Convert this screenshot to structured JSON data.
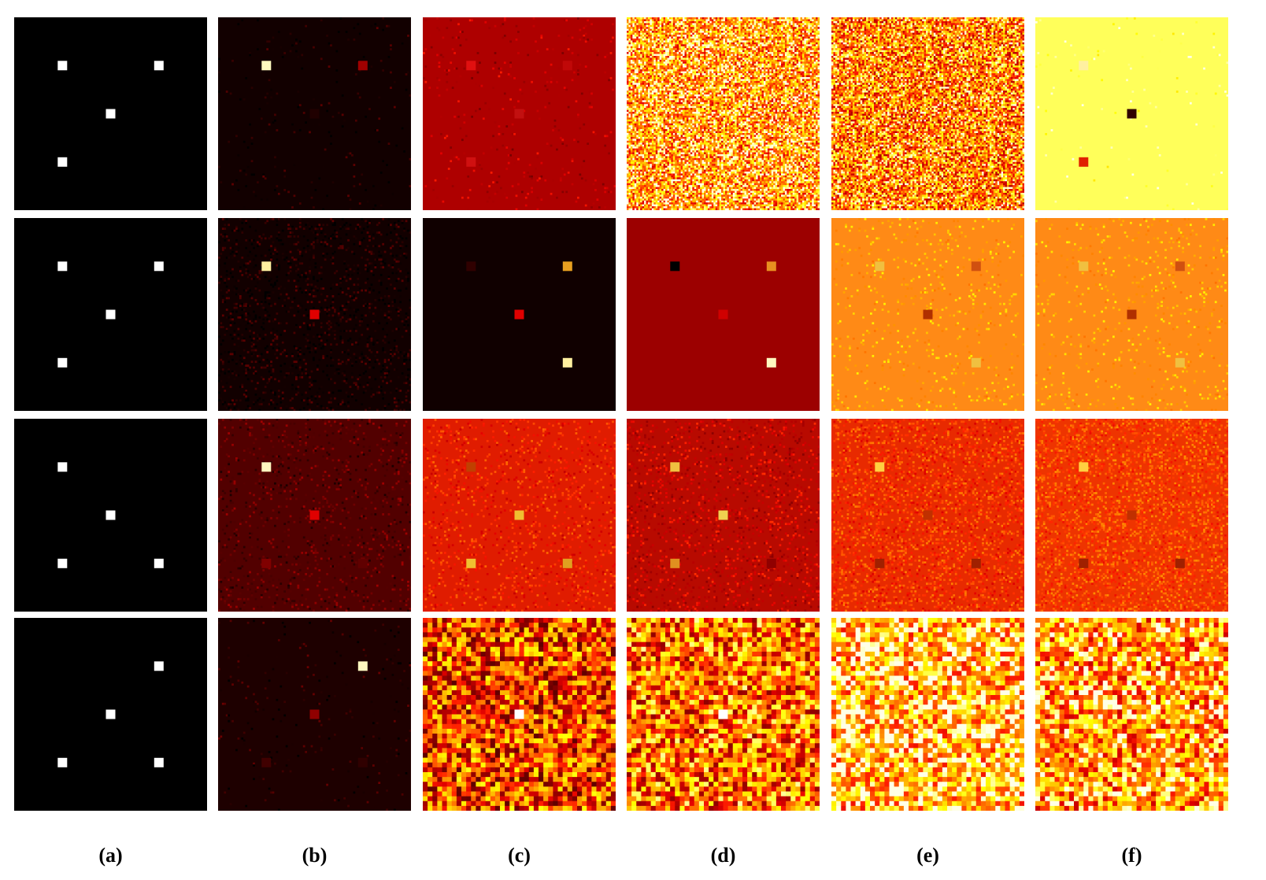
{
  "figure": {
    "column_labels": [
      "(a)",
      "(b)",
      "(c)",
      "(d)",
      "(e)",
      "(f)"
    ],
    "rows": [
      [
        {
          "background": "#000000",
          "noise": 0,
          "grid": 100,
          "marks": [
            [
              "#ffffff",
              0.25,
              0.25
            ],
            [
              "#ffffff",
              0.75,
              0.25
            ],
            [
              "#ffffff",
              0.5,
              0.5
            ],
            [
              "#ffffff",
              0.25,
              0.75
            ]
          ]
        },
        {
          "background": "#120000",
          "noise": 0.02,
          "grid": 100,
          "marks": [
            [
              "#fffac0",
              0.25,
              0.25
            ],
            [
              "#a00000",
              0.75,
              0.25
            ],
            [
              "#200000",
              0.5,
              0.5
            ]
          ]
        },
        {
          "background": "#ae0000",
          "noise": 0.03,
          "grid": 100,
          "marks": [
            [
              "#e01010",
              0.25,
              0.25
            ],
            [
              "#c00808",
              0.75,
              0.25
            ],
            [
              "#c21010",
              0.5,
              0.5
            ],
            [
              "#d01010",
              0.25,
              0.75
            ]
          ]
        },
        {
          "background": "#f59a1a",
          "noise": 0.9,
          "grid": 100,
          "marks": []
        },
        {
          "background": "#ef7b14",
          "noise": 0.9,
          "grid": 100,
          "marks": []
        },
        {
          "background": "#ffff5a",
          "noise": 0.01,
          "grid": 100,
          "marks": [
            [
              "#fff0a0",
              0.25,
              0.25
            ],
            [
              "#300000",
              0.5,
              0.5
            ],
            [
              "#e02000",
              0.25,
              0.75
            ]
          ]
        }
      ],
      [
        {
          "background": "#000000",
          "noise": 0,
          "grid": 100,
          "marks": [
            [
              "#ffffff",
              0.25,
              0.25
            ],
            [
              "#ffffff",
              0.75,
              0.25
            ],
            [
              "#ffffff",
              0.5,
              0.5
            ],
            [
              "#ffffff",
              0.25,
              0.75
            ]
          ]
        },
        {
          "background": "#120000",
          "noise": 0.15,
          "grid": 100,
          "marks": [
            [
              "#fff0a0",
              0.25,
              0.25
            ],
            [
              "#e00000",
              0.5,
              0.5
            ]
          ]
        },
        {
          "background": "#100000",
          "noise": 0,
          "grid": 100,
          "marks": [
            [
              "#300000",
              0.25,
              0.25
            ],
            [
              "#e8a020",
              0.75,
              0.25
            ],
            [
              "#e00000",
              0.5,
              0.5
            ],
            [
              "#fff0a0",
              0.75,
              0.75
            ]
          ]
        },
        {
          "background": "#9c0000",
          "noise": 0,
          "grid": 100,
          "marks": [
            [
              "#000000",
              0.25,
              0.25
            ],
            [
              "#e89020",
              0.75,
              0.25
            ],
            [
              "#d00000",
              0.5,
              0.5
            ],
            [
              "#fff8c0",
              0.75,
              0.75
            ]
          ]
        },
        {
          "background": "#ff8a16",
          "noise": 0.05,
          "grid": 100,
          "marks": [
            [
              "#f0c040",
              0.25,
              0.25
            ],
            [
              "#d05010",
              0.75,
              0.25
            ],
            [
              "#b03000",
              0.5,
              0.5
            ],
            [
              "#f0c040",
              0.75,
              0.75
            ]
          ]
        },
        {
          "background": "#ff8a16",
          "noise": 0.05,
          "grid": 100,
          "marks": [
            [
              "#f0c040",
              0.25,
              0.25
            ],
            [
              "#d05010",
              0.75,
              0.25
            ],
            [
              "#b03000",
              0.5,
              0.5
            ],
            [
              "#f0c040",
              0.75,
              0.75
            ]
          ]
        }
      ],
      [
        {
          "background": "#000000",
          "noise": 0,
          "grid": 100,
          "marks": [
            [
              "#ffffff",
              0.25,
              0.25
            ],
            [
              "#ffffff",
              0.5,
              0.5
            ],
            [
              "#ffffff",
              0.25,
              0.75
            ],
            [
              "#ffffff",
              0.75,
              0.75
            ]
          ]
        },
        {
          "background": "#520000",
          "noise": 0.1,
          "grid": 100,
          "marks": [
            [
              "#fff8c0",
              0.25,
              0.25
            ],
            [
              "#e00000",
              0.5,
              0.5
            ],
            [
              "#800000",
              0.25,
              0.75
            ],
            [
              "#600000",
              0.75,
              0.75
            ]
          ]
        },
        {
          "background": "#e01c00",
          "noise": 0.12,
          "grid": 100,
          "marks": [
            [
              "#c04000",
              0.25,
              0.25
            ],
            [
              "#f0c030",
              0.5,
              0.5
            ],
            [
              "#f0c030",
              0.25,
              0.75
            ],
            [
              "#e0a020",
              0.75,
              0.75
            ]
          ]
        },
        {
          "background": "#b80a00",
          "noise": 0.15,
          "grid": 100,
          "marks": [
            [
              "#f0c040",
              0.25,
              0.25
            ],
            [
              "#f0d050",
              0.5,
              0.5
            ],
            [
              "#e09020",
              0.25,
              0.75
            ],
            [
              "#900000",
              0.75,
              0.75
            ]
          ]
        },
        {
          "background": "#e82a00",
          "noise": 0.25,
          "grid": 100,
          "marks": [
            [
              "#ffd040",
              0.25,
              0.25
            ],
            [
              "#c03000",
              0.5,
              0.5
            ],
            [
              "#a02000",
              0.25,
              0.75
            ],
            [
              "#a02000",
              0.75,
              0.75
            ]
          ]
        },
        {
          "background": "#ee3400",
          "noise": 0.3,
          "grid": 100,
          "marks": [
            [
              "#ffd040",
              0.25,
              0.25
            ],
            [
              "#c03000",
              0.5,
              0.5
            ],
            [
              "#a02000",
              0.25,
              0.75
            ],
            [
              "#a02000",
              0.75,
              0.75
            ]
          ]
        }
      ],
      [
        {
          "background": "#000000",
          "noise": 0,
          "grid": 100,
          "marks": [
            [
              "#ffffff",
              0.75,
              0.25
            ],
            [
              "#ffffff",
              0.5,
              0.5
            ],
            [
              "#ffffff",
              0.25,
              0.75
            ],
            [
              "#ffffff",
              0.75,
              0.75
            ]
          ]
        },
        {
          "background": "#1e0000",
          "noise": 0.02,
          "grid": 100,
          "marks": [
            [
              "#fff8c0",
              0.75,
              0.25
            ],
            [
              "#900000",
              0.5,
              0.5
            ],
            [
              "#400000",
              0.25,
              0.75
            ],
            [
              "#300000",
              0.75,
              0.75
            ]
          ]
        },
        {
          "background": "#dc3a00",
          "noise": 1.0,
          "grid": 40,
          "marks": [
            [
              "#ffffff",
              0.5,
              0.5
            ]
          ]
        },
        {
          "background": "#e86000",
          "noise": 1.0,
          "grid": 40,
          "marks": [
            [
              "#ffffff",
              0.5,
              0.5
            ]
          ]
        },
        {
          "background": "#f8b010",
          "noise": 1.0,
          "grid": 40,
          "marks": []
        },
        {
          "background": "#f49010",
          "noise": 1.0,
          "grid": 40,
          "marks": []
        }
      ]
    ]
  }
}
